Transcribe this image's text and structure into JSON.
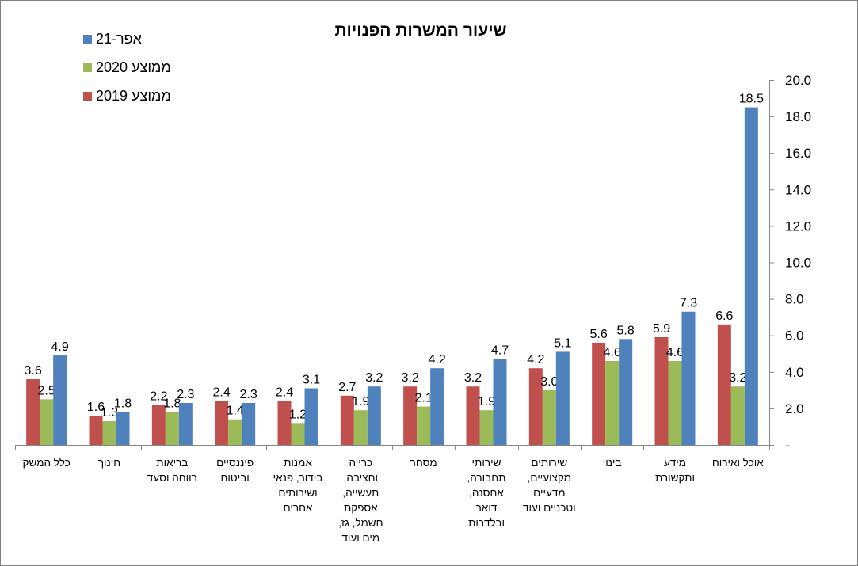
{
  "chart_data": {
    "type": "bar",
    "title": "שיעור המשרות הפנויות",
    "categories": [
      [
        "כלל המשק"
      ],
      [
        "חינוך"
      ],
      [
        "בריאות",
        "רווחה וסעד"
      ],
      [
        "פיננסיים",
        "וביטוח"
      ],
      [
        "אמנות",
        "בידור, פנאי",
        "ושירותים",
        "אחרים"
      ],
      [
        "כרייה",
        "וחציבה,",
        "תעשייה,",
        "אספקת",
        "חשמל, גז,",
        "מים ועוד"
      ],
      [
        "מסחר"
      ],
      [
        "שירותי",
        "תחבורה,",
        "אחסנה,",
        "דואר",
        "ובלדרות"
      ],
      [
        "שירותים",
        "מקצועיים,",
        "מדעיים",
        "וטכניים ועוד"
      ],
      [
        "בינוי"
      ],
      [
        "מידע",
        "ותקשורת"
      ],
      [
        "אוכל ואירוח"
      ]
    ],
    "series": [
      {
        "name": "ממוצע 2019",
        "color": "#c0504d",
        "values": [
          3.6,
          1.6,
          2.2,
          2.4,
          2.4,
          2.7,
          3.2,
          3.2,
          4.2,
          5.6,
          5.9,
          6.6
        ]
      },
      {
        "name": "ממוצע 2020",
        "color": "#9bbb59",
        "values": [
          2.5,
          1.3,
          1.8,
          1.4,
          1.2,
          1.9,
          2.1,
          1.9,
          3.0,
          4.6,
          4.6,
          3.2
        ]
      },
      {
        "name": "אפר-21",
        "color": "#4f81bd",
        "values": [
          4.9,
          1.8,
          2.3,
          2.3,
          3.1,
          3.2,
          4.2,
          4.7,
          5.1,
          5.8,
          7.3,
          18.5
        ]
      }
    ],
    "legend_order": [
      "אפר-21",
      "ממוצע 2020",
      "ממוצע 2019"
    ],
    "legend_position": "top-left",
    "ylim": [
      0,
      20
    ],
    "y_ticks": [
      "-",
      "2.0",
      "4.0",
      "6.0",
      "8.0",
      "10.0",
      "12.0",
      "14.0",
      "16.0",
      "18.0",
      "20.0"
    ],
    "y_axis_side": "right",
    "grid": false,
    "xlabel": "",
    "ylabel": ""
  }
}
